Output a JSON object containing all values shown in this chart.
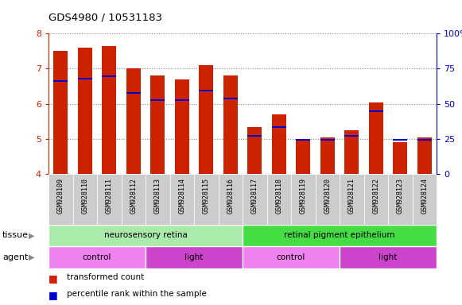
{
  "title": "GDS4980 / 10531183",
  "samples": [
    "GSM928109",
    "GSM928110",
    "GSM928111",
    "GSM928112",
    "GSM928113",
    "GSM928114",
    "GSM928115",
    "GSM928116",
    "GSM928117",
    "GSM928118",
    "GSM928119",
    "GSM928120",
    "GSM928121",
    "GSM928122",
    "GSM928123",
    "GSM928124"
  ],
  "red_values": [
    7.5,
    7.6,
    7.65,
    7.0,
    6.8,
    6.7,
    7.1,
    6.8,
    5.35,
    5.7,
    4.98,
    5.05,
    5.25,
    6.05,
    4.9,
    5.05
  ],
  "blue_values": [
    6.65,
    6.72,
    6.78,
    6.3,
    6.1,
    6.1,
    6.38,
    6.15,
    5.1,
    5.35,
    4.98,
    4.98,
    5.1,
    5.8,
    4.98,
    4.98
  ],
  "ylim_left": [
    4,
    8
  ],
  "ylim_right": [
    0,
    100
  ],
  "yticks_left": [
    4,
    5,
    6,
    7,
    8
  ],
  "yticks_right": [
    0,
    25,
    50,
    75,
    100
  ],
  "tissue_groups": [
    {
      "label": "neurosensory retina",
      "start": 0,
      "end": 8,
      "color": "#aaeaaa"
    },
    {
      "label": "retinal pigment epithelium",
      "start": 8,
      "end": 16,
      "color": "#44dd44"
    }
  ],
  "agent_groups": [
    {
      "label": "control",
      "start": 0,
      "end": 4,
      "color": "#ee82ee"
    },
    {
      "label": "light",
      "start": 4,
      "end": 8,
      "color": "#cc44cc"
    },
    {
      "label": "control",
      "start": 8,
      "end": 12,
      "color": "#ee82ee"
    },
    {
      "label": "light",
      "start": 12,
      "end": 16,
      "color": "#cc44cc"
    }
  ],
  "bar_color": "#cc2200",
  "blue_color": "#0000cc",
  "bar_width": 0.6,
  "ylabel_left_color": "#cc2200",
  "ylabel_right_color": "#0000cc"
}
